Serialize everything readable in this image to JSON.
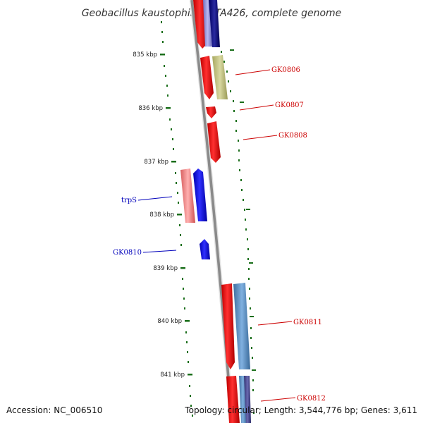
{
  "title": "Geobacillus kaustophilus HTA426, complete genome",
  "footer": {
    "accession": "Accession: NC_006510",
    "summary": "Topology: circular; Length: 3,544,776 bp; Genes: 3,611"
  },
  "colors": {
    "backbone": "#8a8a8a",
    "tick": "#1a6e1a",
    "forward_label": "#cc0000",
    "reverse_label": "#0000bb"
  },
  "ticks": [
    {
      "kbp": 835,
      "label": "835 kbp"
    },
    {
      "kbp": 836,
      "label": "836 kbp"
    },
    {
      "kbp": 837,
      "label": "837 kbp"
    },
    {
      "kbp": 838,
      "label": "838 kbp"
    },
    {
      "kbp": 839,
      "label": "839 kbp"
    },
    {
      "kbp": 840,
      "label": "840 kbp"
    },
    {
      "kbp": 841,
      "label": "841 kbp"
    }
  ],
  "genes": [
    {
      "label": "GK0806",
      "strand": "forward"
    },
    {
      "label": "GK0807",
      "strand": "forward"
    },
    {
      "label": "GK0808",
      "strand": "forward"
    },
    {
      "label": "trpS",
      "strand": "reverse"
    },
    {
      "label": "GK0810",
      "strand": "reverse"
    },
    {
      "label": "GK0811",
      "strand": "forward"
    },
    {
      "label": "GK0812",
      "strand": "forward"
    }
  ]
}
